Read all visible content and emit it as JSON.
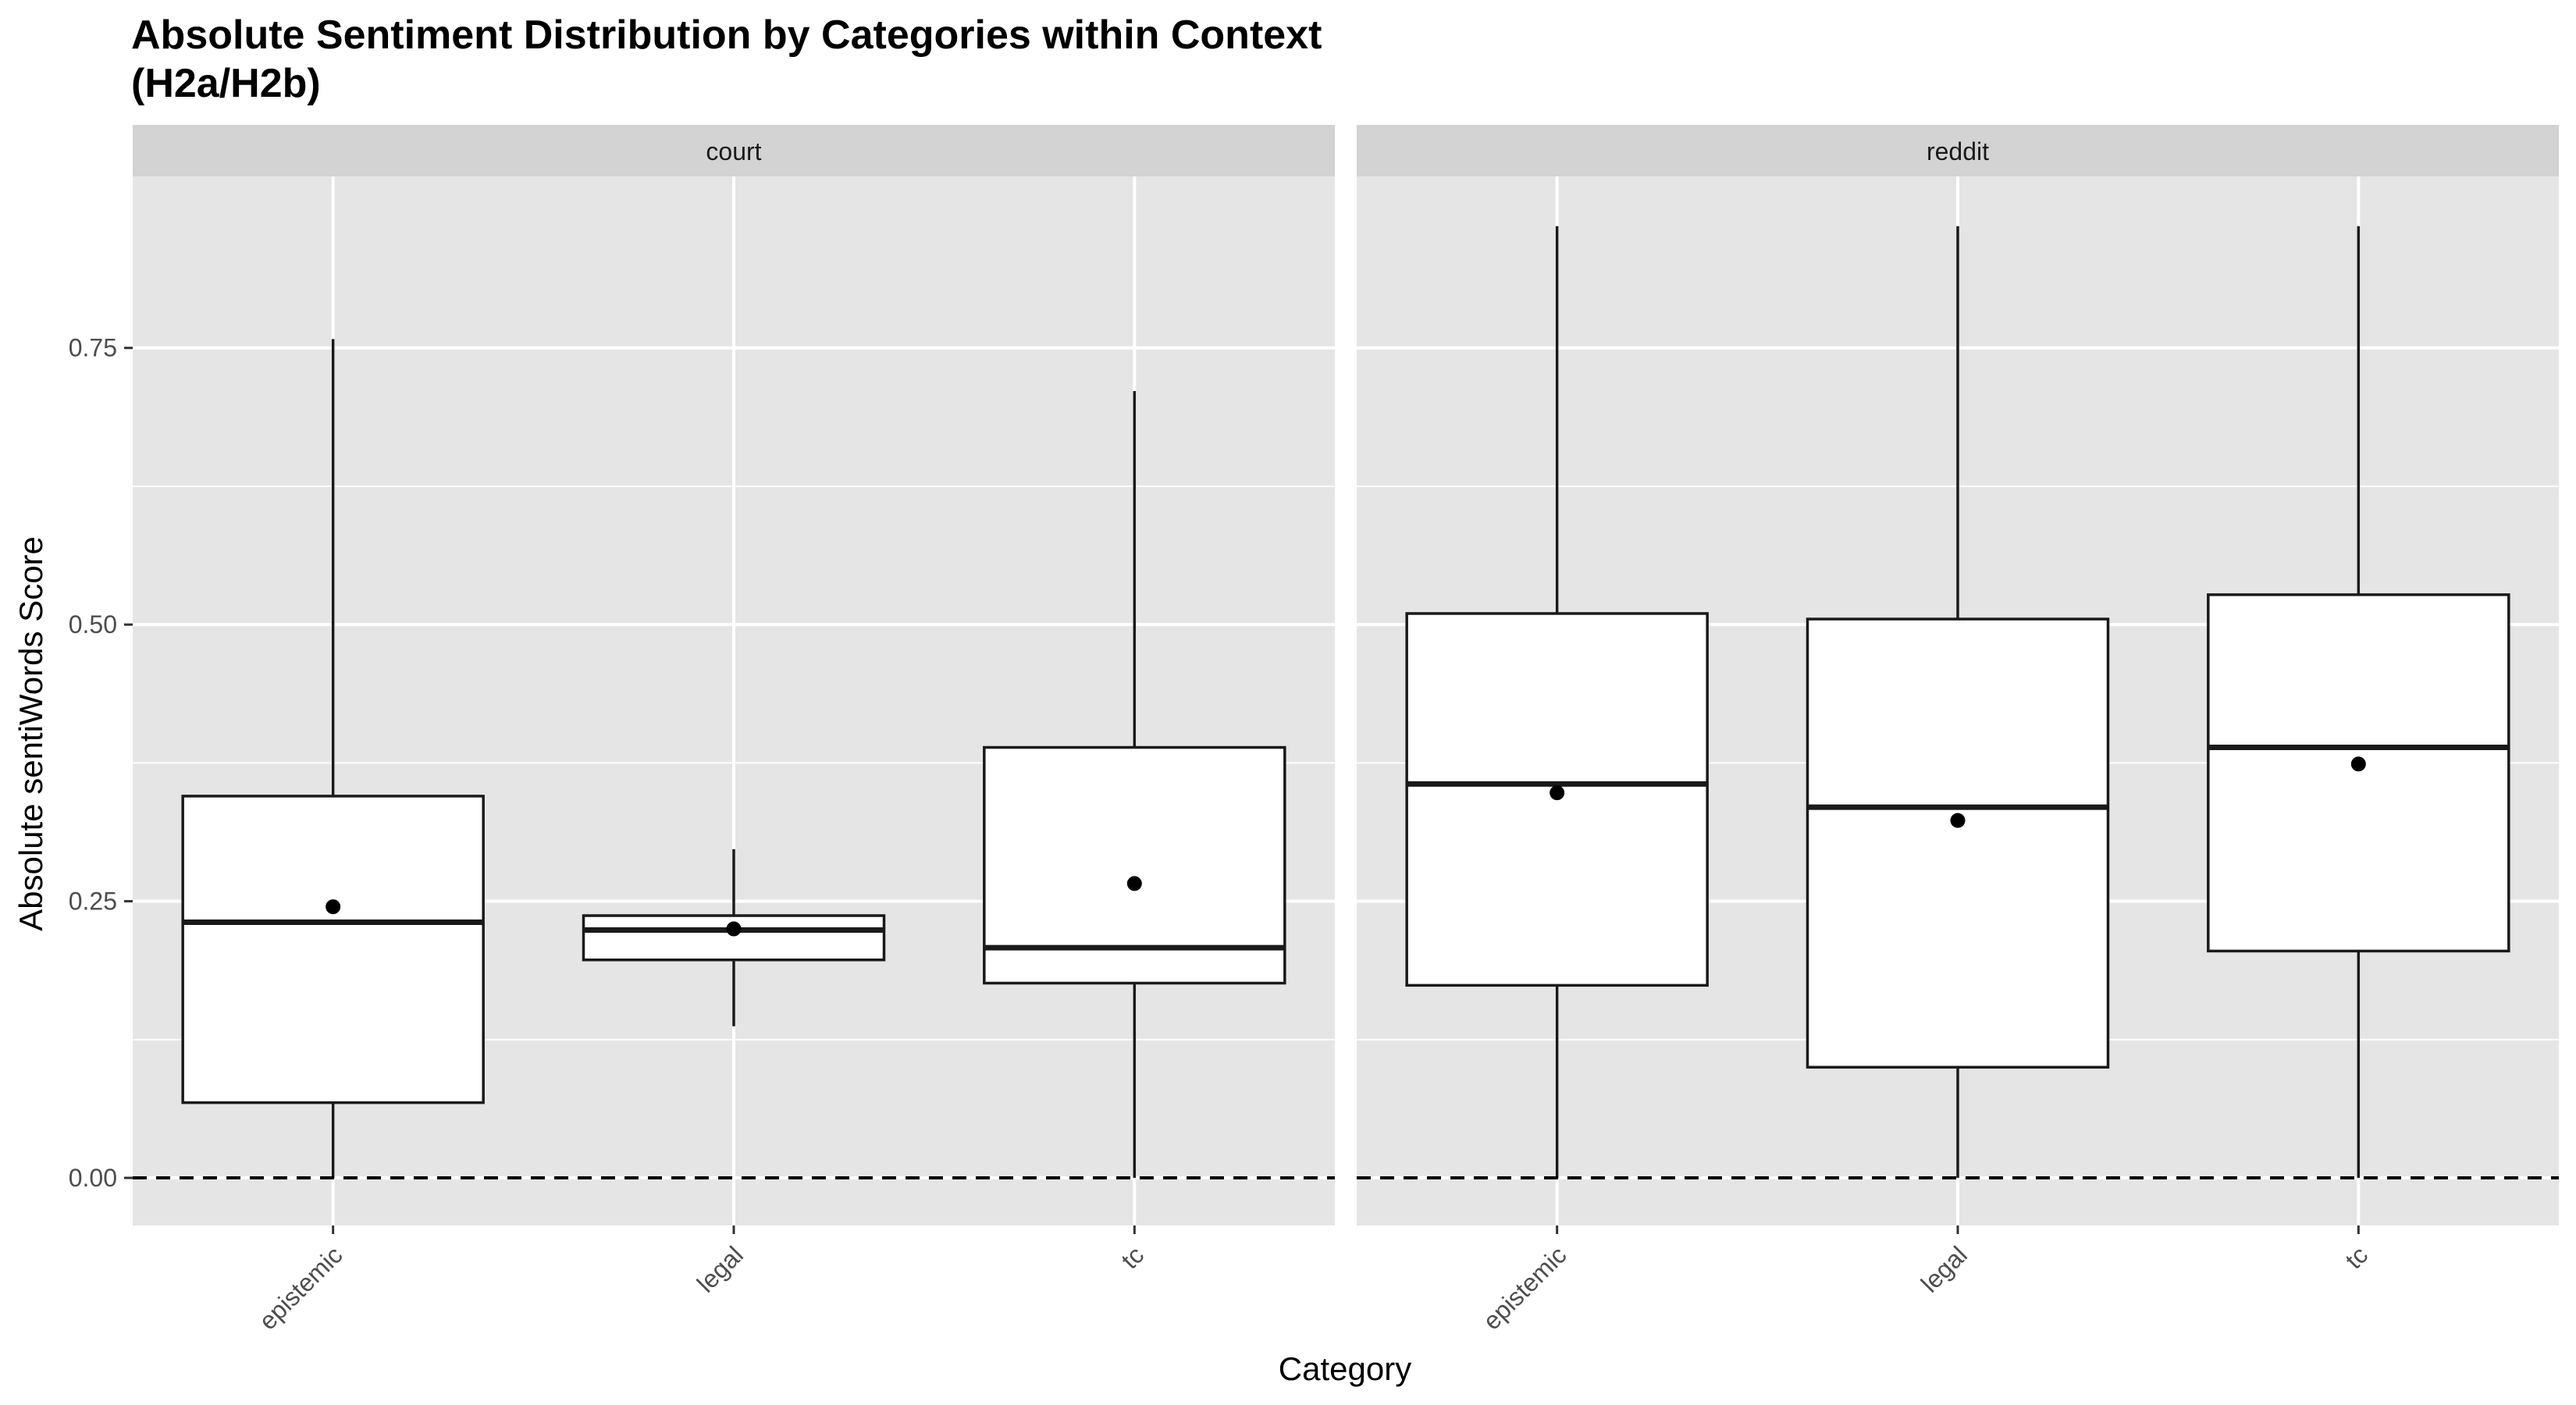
{
  "chart_data": {
    "type": "boxplot",
    "title_lines": [
      "Absolute Sentiment Distribution by Categories within Context",
      "(H2a/H2b)"
    ],
    "xlabel": "Category",
    "ylabel": "Absolute sentiWords Score",
    "ylim": [
      -0.043,
      0.905
    ],
    "yticks": [
      0.0,
      0.25,
      0.5,
      0.75
    ],
    "ytick_labels": [
      "0.00",
      "0.25",
      "0.50",
      "0.75"
    ],
    "reference_line": {
      "y": 0.0,
      "style": "dashed"
    },
    "categories": [
      "epistemic",
      "legal",
      "tc"
    ],
    "colors": {
      "panel_bg": "#e5e5e5",
      "grid": "#ffffff",
      "strip_bg": "#d3d3d3",
      "box_fill": "#ffffff",
      "line": "#1a1a1a"
    },
    "facets": [
      {
        "name": "court",
        "boxes": [
          {
            "category": "epistemic",
            "whisker_low": 0.0,
            "q1": 0.068,
            "median": 0.231,
            "q3": 0.345,
            "whisker_high": 0.758,
            "mean": 0.245
          },
          {
            "category": "legal",
            "whisker_low": 0.137,
            "q1": 0.197,
            "median": 0.224,
            "q3": 0.237,
            "whisker_high": 0.297,
            "mean": 0.225
          },
          {
            "category": "tc",
            "whisker_low": 0.0,
            "q1": 0.176,
            "median": 0.208,
            "q3": 0.389,
            "whisker_high": 0.711,
            "mean": 0.266
          }
        ]
      },
      {
        "name": "reddit",
        "boxes": [
          {
            "category": "epistemic",
            "whisker_low": 0.0,
            "q1": 0.174,
            "median": 0.356,
            "q3": 0.51,
            "whisker_high": 0.86,
            "mean": 0.348
          },
          {
            "category": "legal",
            "whisker_low": 0.0,
            "q1": 0.1,
            "median": 0.335,
            "q3": 0.505,
            "whisker_high": 0.86,
            "mean": 0.323
          },
          {
            "category": "tc",
            "whisker_low": 0.0,
            "q1": 0.205,
            "median": 0.389,
            "q3": 0.527,
            "whisker_high": 0.86,
            "mean": 0.374
          }
        ]
      }
    ]
  }
}
